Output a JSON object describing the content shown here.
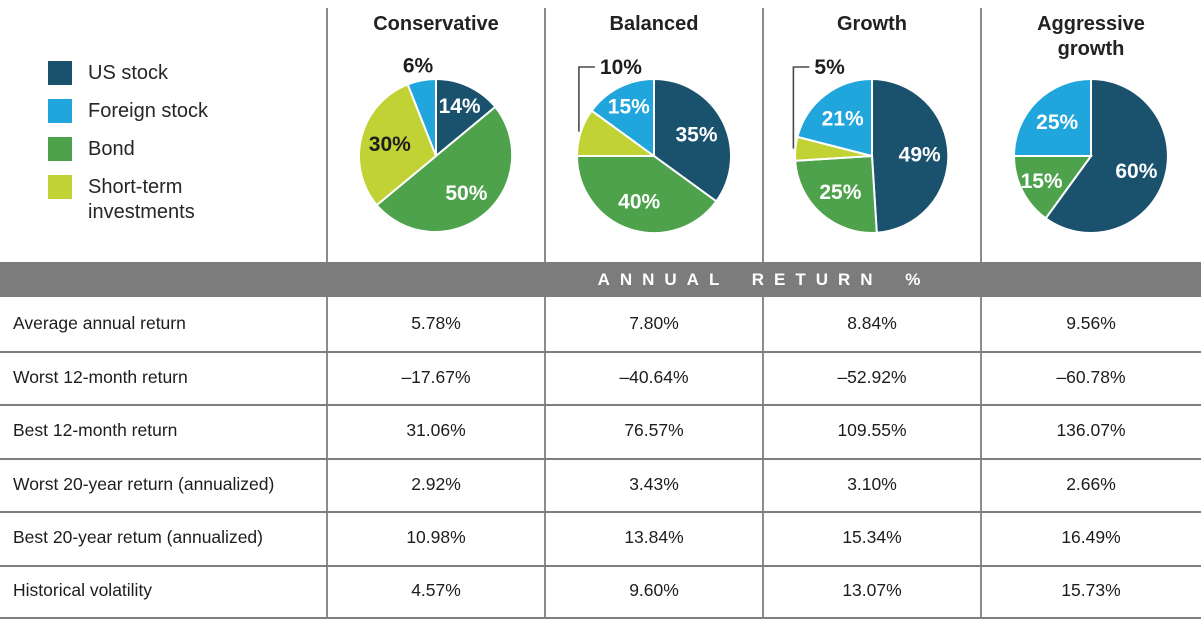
{
  "colors": {
    "us_stock": "#1A526E",
    "foreign_stock": "#20A5DC",
    "bond": "#4EA24B",
    "short_term": "#C0D234",
    "band_background": "#7C7C7C",
    "grid_line": "#8B8B8B",
    "callout_line": "#4A4A4A",
    "label_light": "#FFFFFF",
    "text_dark": "#1E1E1E"
  },
  "legend": {
    "items": [
      {
        "label": "US stock",
        "color_key": "us_stock"
      },
      {
        "label": "Foreign stock",
        "color_key": "foreign_stock"
      },
      {
        "label": "Bond",
        "color_key": "bond"
      },
      {
        "label": "Short-term investments",
        "color_key": "short_term"
      }
    ]
  },
  "annual_return_band": {
    "title": "ANNUAL RETURN %"
  },
  "chart_data": [
    {
      "type": "pie",
      "title": "Conservative",
      "labels": [
        "US stock",
        "Bond",
        "Short-term investments",
        "Foreign stock"
      ],
      "values": [
        14,
        50,
        30,
        6
      ],
      "color_keys": [
        "us_stock",
        "bond",
        "short_term",
        "foreign_stock"
      ],
      "label_styles": [
        "inside-light",
        "inside-light",
        "inside-dark",
        "outside"
      ],
      "start_angle": "12-oclock",
      "direction": "clockwise"
    },
    {
      "type": "pie",
      "title": "Balanced",
      "labels": [
        "US stock",
        "Bond",
        "Short-term investments",
        "Foreign stock"
      ],
      "values": [
        35,
        40,
        10,
        15
      ],
      "color_keys": [
        "us_stock",
        "bond",
        "short_term",
        "foreign_stock"
      ],
      "label_styles": [
        "inside-light",
        "inside-light",
        "outside-callout",
        "inside-light"
      ],
      "start_angle": "12-oclock",
      "direction": "clockwise"
    },
    {
      "type": "pie",
      "title": "Growth",
      "labels": [
        "US stock",
        "Bond",
        "Short-term investments",
        "Foreign stock"
      ],
      "values": [
        49,
        25,
        5,
        21
      ],
      "color_keys": [
        "us_stock",
        "bond",
        "short_term",
        "foreign_stock"
      ],
      "label_styles": [
        "inside-light",
        "inside-light",
        "outside-callout",
        "inside-light"
      ],
      "start_angle": "12-oclock",
      "direction": "clockwise"
    },
    {
      "type": "pie",
      "title": "Aggressive growth",
      "labels": [
        "US stock",
        "Bond",
        "Foreign stock"
      ],
      "values": [
        60,
        15,
        25
      ],
      "color_keys": [
        "us_stock",
        "bond",
        "foreign_stock"
      ],
      "label_styles": [
        "inside-light",
        "inside-light",
        "inside-light"
      ],
      "start_angle": "12-oclock",
      "direction": "clockwise"
    }
  ],
  "table": {
    "section_title": "ANNUAL RETURN %",
    "column_headers": [
      "Conservative",
      "Balanced",
      "Growth",
      "Aggressive growth"
    ],
    "rows": [
      {
        "label": "Average annual return",
        "values": [
          "5.78%",
          "7.80%",
          "8.84%",
          "9.56%"
        ]
      },
      {
        "label": "Worst 12-month return",
        "values": [
          "–17.67%",
          "–40.64%",
          "–52.92%",
          "–60.78%"
        ]
      },
      {
        "label": "Best 12-month return",
        "values": [
          "31.06%",
          "76.57%",
          "109.55%",
          "136.07%"
        ]
      },
      {
        "label": "Worst 20-year return (annualized)",
        "values": [
          "2.92%",
          "3.43%",
          "3.10%",
          "2.66%"
        ]
      },
      {
        "label": "Best 20-year retum (annualized)",
        "values": [
          "10.98%",
          "13.84%",
          "15.34%",
          "16.49%"
        ]
      },
      {
        "label": "Historical volatility",
        "values": [
          "4.57%",
          "9.60%",
          "13.07%",
          "15.73%"
        ]
      }
    ]
  }
}
